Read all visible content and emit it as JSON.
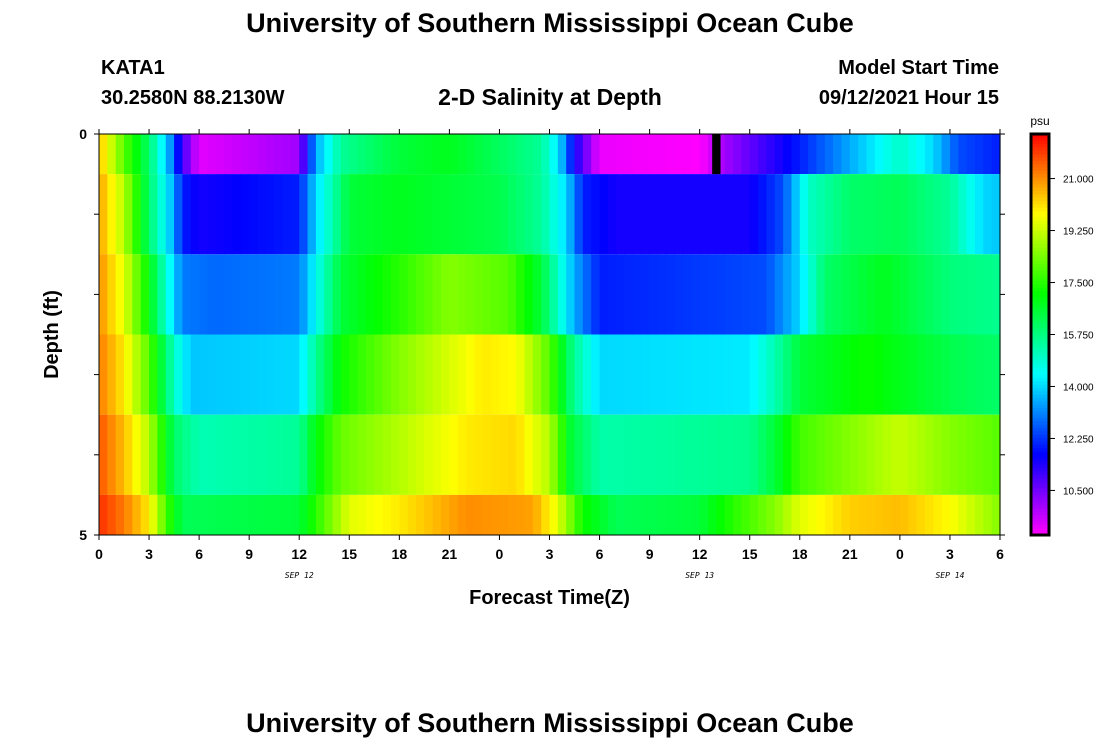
{
  "header": {
    "title_top": "University of Southern Mississippi Ocean Cube",
    "title_bottom": "University of Southern Mississippi Ocean Cube",
    "station": "KATA1",
    "coords": "30.2580N  88.2130W",
    "subtitle": "2-D Salinity at Depth",
    "model_label": "Model Start Time",
    "model_time": "09/12/2021 Hour 15"
  },
  "chart_data": {
    "type": "heatmap",
    "xlabel": "Forecast Time(Z)",
    "ylabel": "Depth (ft)",
    "x_tick_labels": [
      "0",
      "3",
      "6",
      "9",
      "12",
      "15",
      "18",
      "21",
      "0",
      "3",
      "6",
      "9",
      "12",
      "15",
      "18",
      "21",
      "0",
      "3",
      "6"
    ],
    "date_labels": [
      {
        "text": "SEP 12",
        "hour": 12
      },
      {
        "text": "SEP 13",
        "hour": 36
      },
      {
        "text": "SEP 14",
        "hour": 51
      }
    ],
    "x_range_hours": [
      0,
      54
    ],
    "y_tick_labels": [
      "0",
      "5"
    ],
    "y_range": [
      0,
      5
    ],
    "colorbar": {
      "unit": "psu",
      "tick_labels": [
        "21.000",
        "19.250",
        "17.500",
        "15.750",
        "14.000",
        "12.250",
        "10.500"
      ],
      "ticks": [
        21.0,
        19.25,
        17.5,
        15.75,
        14.0,
        12.25,
        10.5
      ],
      "range": [
        9.0,
        22.5
      ]
    },
    "rows": [
      {
        "depth_top": 0,
        "depth_bottom": 0.5,
        "keys": [
          [
            0,
            20.5
          ],
          [
            1.5,
            18
          ],
          [
            3,
            16
          ],
          [
            4.2,
            13.5
          ],
          [
            5,
            11
          ],
          [
            6,
            9.3
          ],
          [
            12,
            10
          ],
          [
            13,
            13.5
          ],
          [
            14.5,
            15.5
          ],
          [
            18,
            16.5
          ],
          [
            21,
            16.8
          ],
          [
            24.5,
            16
          ],
          [
            26.5,
            15.5
          ],
          [
            27.6,
            14
          ],
          [
            28.5,
            11.5
          ],
          [
            30,
            9.2
          ],
          [
            36,
            9
          ],
          [
            37.5,
            10
          ],
          [
            42,
            12
          ],
          [
            45,
            13.5
          ],
          [
            48,
            15
          ],
          [
            50,
            14
          ],
          [
            51.5,
            12.5
          ],
          [
            54,
            12
          ]
        ]
      },
      {
        "depth_top": 0.5,
        "depth_bottom": 1.5,
        "keys": [
          [
            0,
            20.8
          ],
          [
            1.5,
            19
          ],
          [
            3,
            16
          ],
          [
            4.2,
            14
          ],
          [
            5,
            12
          ],
          [
            6,
            11.5
          ],
          [
            12,
            12
          ],
          [
            13,
            14
          ],
          [
            15,
            16.5
          ],
          [
            18,
            16.8
          ],
          [
            24,
            16.3
          ],
          [
            26.5,
            15.5
          ],
          [
            28,
            14
          ],
          [
            29,
            12
          ],
          [
            31,
            11.5
          ],
          [
            39,
            11.5
          ],
          [
            41,
            12.5
          ],
          [
            42.5,
            15
          ],
          [
            45,
            16
          ],
          [
            48,
            16.2
          ],
          [
            51,
            15.5
          ],
          [
            53,
            14
          ],
          [
            54,
            13.8
          ]
        ]
      },
      {
        "depth_top": 1.5,
        "depth_bottom": 2.5,
        "keys": [
          [
            0,
            21
          ],
          [
            1.5,
            19.5
          ],
          [
            3,
            17
          ],
          [
            4.2,
            14.5
          ],
          [
            5,
            13
          ],
          [
            7,
            12.8
          ],
          [
            12,
            13
          ],
          [
            13,
            14.5
          ],
          [
            14.5,
            16.5
          ],
          [
            18,
            17.5
          ],
          [
            21,
            18.5
          ],
          [
            24.5,
            18
          ],
          [
            26.5,
            16.5
          ],
          [
            28.5,
            13.5
          ],
          [
            30,
            12
          ],
          [
            40,
            12.5
          ],
          [
            42,
            14
          ],
          [
            43.5,
            16
          ],
          [
            47,
            16.8
          ],
          [
            51,
            15.8
          ],
          [
            54,
            15.6
          ]
        ]
      },
      {
        "depth_top": 2.5,
        "depth_bottom": 3.5,
        "keys": [
          [
            0,
            21.2
          ],
          [
            1.5,
            20
          ],
          [
            3,
            18
          ],
          [
            4.5,
            15
          ],
          [
            5.5,
            13.8
          ],
          [
            12,
            14
          ],
          [
            13,
            15.5
          ],
          [
            14.5,
            17.2
          ],
          [
            18,
            18.5
          ],
          [
            23,
            20
          ],
          [
            25,
            19.8
          ],
          [
            27,
            18
          ],
          [
            28.5,
            15.5
          ],
          [
            30,
            14
          ],
          [
            39,
            14.2
          ],
          [
            40.5,
            15.2
          ],
          [
            42,
            16.5
          ],
          [
            46,
            17.2
          ],
          [
            51,
            16.3
          ],
          [
            54,
            16
          ]
        ]
      },
      {
        "depth_top": 3.5,
        "depth_bottom": 4.5,
        "keys": [
          [
            0,
            21.6
          ],
          [
            1.5,
            20.5
          ],
          [
            3,
            19
          ],
          [
            4.5,
            16
          ],
          [
            6,
            15.2
          ],
          [
            12,
            15.5
          ],
          [
            13,
            17
          ],
          [
            14.5,
            18.2
          ],
          [
            18,
            19
          ],
          [
            22,
            20
          ],
          [
            25,
            20.2
          ],
          [
            27,
            19
          ],
          [
            28.3,
            16.5
          ],
          [
            30,
            15.3
          ],
          [
            39,
            15.6
          ],
          [
            40.5,
            16.5
          ],
          [
            42,
            17.8
          ],
          [
            45,
            18.5
          ],
          [
            48,
            19.2
          ],
          [
            51,
            18.5
          ],
          [
            54,
            18
          ]
        ]
      },
      {
        "depth_top": 4.5,
        "depth_bottom": 5.0,
        "keys": [
          [
            0,
            22
          ],
          [
            1.5,
            21.2
          ],
          [
            3,
            20
          ],
          [
            4.2,
            17.5
          ],
          [
            5,
            16.2
          ],
          [
            12,
            16.5
          ],
          [
            13.5,
            18
          ],
          [
            15,
            19.5
          ],
          [
            18,
            20
          ],
          [
            22,
            21
          ],
          [
            26,
            20.8
          ],
          [
            27.5,
            19.5
          ],
          [
            29,
            17.2
          ],
          [
            31,
            16.2
          ],
          [
            36,
            16.5
          ],
          [
            38,
            17.5
          ],
          [
            40.5,
            18.5
          ],
          [
            42,
            19.5
          ],
          [
            45,
            20.3
          ],
          [
            48,
            20.5
          ],
          [
            51,
            19.8
          ],
          [
            54,
            18.5
          ]
        ]
      }
    ],
    "missing_cells": [
      {
        "hour_start": 36.75,
        "hour_end": 37.25,
        "depth_top": 0,
        "depth_bottom": 0.5
      }
    ]
  }
}
